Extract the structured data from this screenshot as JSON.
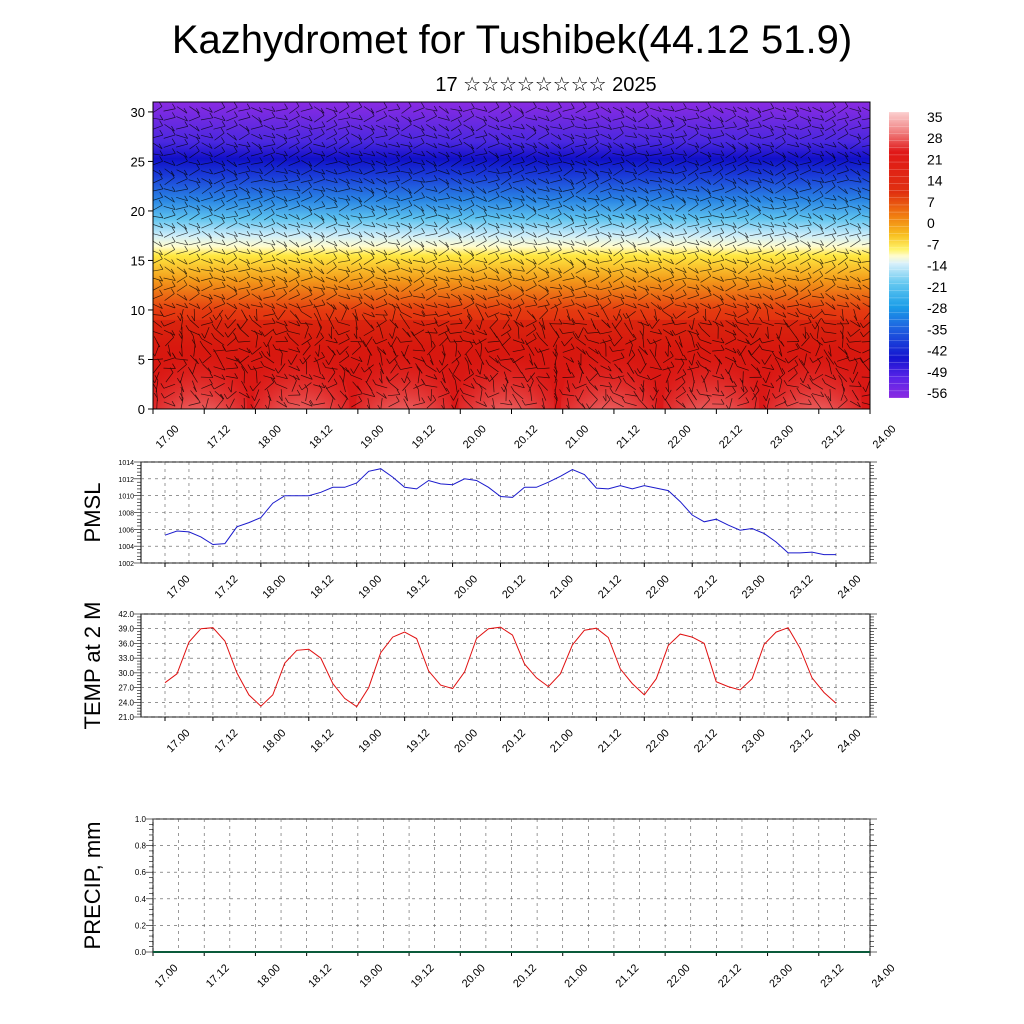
{
  "title": "Kazhydromet for Tushibek(44.12 51.9)",
  "subtitle": "17 ☆☆☆☆☆☆☆☆ 2025",
  "colors": {
    "pmsl_line": "#1a1acc",
    "temp_line": "#e01010",
    "precip_line": "#0a5a3a"
  },
  "chart_data": [
    {
      "id": "section",
      "type": "heatmap",
      "title": "",
      "xlabel": "",
      "ylabel": "",
      "x_ticks": [
        "17.00",
        "17.12",
        "18.00",
        "18.12",
        "19.00",
        "19.12",
        "20.00",
        "20.12",
        "21.00",
        "21.12",
        "22.00",
        "22.12",
        "23.00",
        "23.12",
        "24.00"
      ],
      "y_ticks": [
        0,
        5,
        10,
        15,
        20,
        25,
        30
      ],
      "ylim": [
        0,
        31
      ],
      "colorbar": {
        "labels": [
          "35",
          "28",
          "21",
          "14",
          "7",
          "0",
          "-7",
          "-14",
          "-21",
          "-28",
          "-35",
          "-42",
          "-49",
          "-56"
        ],
        "range": [
          -63,
          38
        ]
      },
      "temperature_profile": [
        {
          "level": 0,
          "value": 30
        },
        {
          "level": 5,
          "value": 20
        },
        {
          "level": 10,
          "value": 5
        },
        {
          "level": 15,
          "value": -18
        },
        {
          "level": 19,
          "value": -35
        },
        {
          "level": 22,
          "value": -48
        },
        {
          "level": 25,
          "value": -60
        },
        {
          "level": 28,
          "value": -55
        },
        {
          "level": 31,
          "value": -52
        }
      ],
      "wind_barbs": true
    },
    {
      "id": "pmsl",
      "type": "line",
      "ylabel": "PMSL",
      "ylim": [
        1002,
        1014
      ],
      "y_ticks": [
        1002,
        1004,
        1006,
        1008,
        1010,
        1012,
        1014
      ],
      "x_ticks": [
        "17.00",
        "17.12",
        "18.00",
        "18.12",
        "19.00",
        "19.12",
        "20.00",
        "20.12",
        "21.00",
        "21.12",
        "22.00",
        "22.12",
        "23.00",
        "23.12",
        "24.00"
      ],
      "grid": true,
      "series": [
        {
          "values": [
            1005.3,
            1005.8,
            1005.7,
            1005.1,
            1004.2,
            1004.3,
            1006.3,
            1006.8,
            1007.4,
            1009.1,
            1010.0,
            1010.0,
            1010.0,
            1010.4,
            1011.0,
            1011.0,
            1011.5,
            1012.9,
            1013.2,
            1012.2,
            1011.0,
            1010.8,
            1011.8,
            1011.4,
            1011.3,
            1012.0,
            1011.8,
            1011.0,
            1009.9,
            1009.8,
            1011.0,
            1011.0,
            1011.6,
            1012.3,
            1013.1,
            1012.5,
            1010.9,
            1010.8,
            1011.2,
            1010.8,
            1011.2,
            1010.9,
            1010.6,
            1009.3,
            1007.7,
            1006.9,
            1007.2,
            1006.5,
            1005.9,
            1006.1,
            1005.5,
            1004.5,
            1003.2,
            1003.2,
            1003.3,
            1003.0,
            1003.0
          ]
        }
      ]
    },
    {
      "id": "temp",
      "type": "line",
      "ylabel": "TEMP at 2 M",
      "ylim": [
        21.0,
        42.0
      ],
      "y_ticks": [
        "21.0",
        "24.0",
        "27.0",
        "30.0",
        "33.0",
        "36.0",
        "39.0",
        "42.0"
      ],
      "x_ticks": [
        "17.00",
        "17.12",
        "18.00",
        "18.12",
        "19.00",
        "19.12",
        "20.00",
        "20.12",
        "21.00",
        "21.12",
        "22.00",
        "22.12",
        "23.00",
        "23.12",
        "24.00"
      ],
      "grid": true,
      "series": [
        {
          "values": [
            28.0,
            29.8,
            36.3,
            39.0,
            39.2,
            36.5,
            30.0,
            25.5,
            23.2,
            25.5,
            32.0,
            34.6,
            34.8,
            33.0,
            27.8,
            24.8,
            23.1,
            27.0,
            34.1,
            37.3,
            38.3,
            37.0,
            30.4,
            27.5,
            26.8,
            30.2,
            37.0,
            39.0,
            39.3,
            37.7,
            31.8,
            29.0,
            27.2,
            29.8,
            35.7,
            38.7,
            39.1,
            37.2,
            30.8,
            27.8,
            25.5,
            28.8,
            35.6,
            37.9,
            37.3,
            36.0,
            28.2,
            27.2,
            26.5,
            28.8,
            35.8,
            38.3,
            39.2,
            35.0,
            29.0,
            26.0,
            23.8
          ]
        }
      ]
    },
    {
      "id": "precip",
      "type": "line",
      "ylabel": "PRECIP, mm",
      "ylim": [
        0.0,
        1.0
      ],
      "y_ticks": [
        "0.0",
        "0.2",
        "0.4",
        "0.6",
        "0.8",
        "1.0"
      ],
      "x_ticks": [
        "17.00",
        "17.12",
        "18.00",
        "18.12",
        "19.00",
        "19.12",
        "20.00",
        "20.12",
        "21.00",
        "21.12",
        "22.00",
        "22.12",
        "23.00",
        "23.12",
        "24.00"
      ],
      "grid": true,
      "series": [
        {
          "values": [
            0,
            0,
            0,
            0,
            0,
            0,
            0,
            0,
            0,
            0,
            0,
            0,
            0,
            0,
            0,
            0,
            0,
            0,
            0,
            0,
            0,
            0,
            0,
            0,
            0,
            0,
            0,
            0,
            0,
            0,
            0,
            0,
            0,
            0,
            0,
            0,
            0,
            0,
            0,
            0,
            0,
            0,
            0,
            0,
            0,
            0,
            0,
            0,
            0,
            0,
            0,
            0,
            0,
            0,
            0,
            0,
            0
          ]
        }
      ]
    }
  ]
}
